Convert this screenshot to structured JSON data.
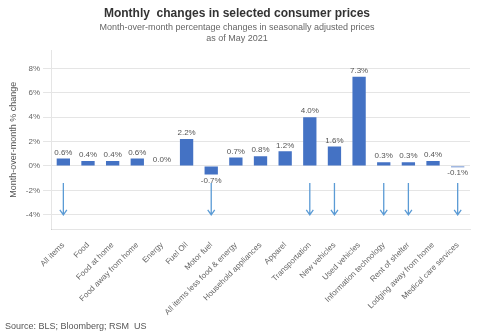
{
  "chart_data": {
    "type": "bar",
    "title": "Monthly  changes in selected consumer prices",
    "subtitle": [
      "Month-over-month percentage changes in seasonally adjusted prices",
      "as of May 2021"
    ],
    "source": "Source: BLS; Bloomberg; RSM  US",
    "ylabel": "Month-over-month % change",
    "categories": [
      "All items",
      "Food",
      "Food at home",
      "Food away from home",
      "Energy",
      "Fuel Oil",
      "Motor fuel",
      "All items less food & energy",
      "Household appliances",
      "Apparel",
      "Transportation",
      "New vehicles",
      "Used vehicles",
      "Information technology",
      "Rent of shelter",
      "Lodging away from home",
      "Medical care services"
    ],
    "values": [
      0.6,
      0.4,
      0.4,
      0.6,
      0.0,
      2.2,
      -0.7,
      0.7,
      0.8,
      1.2,
      4.0,
      1.6,
      7.3,
      0.3,
      0.3,
      0.4,
      -0.1
    ],
    "value_labels": [
      "0.6%",
      "0.4%",
      "0.4%",
      "0.6%",
      "0.0%",
      "2.2%",
      "-0.7%",
      "0.7%",
      "0.8%",
      "1.2%",
      "4.0%",
      "1.6%",
      "7.3%",
      "0.3%",
      "0.3%",
      "0.4%",
      "-0.1%"
    ],
    "data_labels": true,
    "color": "#4472C4",
    "ylim": [
      -5.2,
      9.5
    ],
    "yticks": [
      {
        "value": -4,
        "label": "-4%"
      },
      {
        "value": -2,
        "label": "-2%"
      },
      {
        "value": 0,
        "label": "0%"
      },
      {
        "value": 2,
        "label": "2%"
      },
      {
        "value": 4,
        "label": "4%"
      },
      {
        "value": 6,
        "label": "6%"
      },
      {
        "value": 8,
        "label": "8%"
      }
    ],
    "grid": true,
    "arrows": [
      {
        "category": "All items",
        "from": -1.4,
        "to": -4.0,
        "color": "#5b9bd5"
      },
      {
        "category": "Motor fuel",
        "from": -1.4,
        "to": -4.0,
        "color": "#5b9bd5"
      },
      {
        "category": "Transportation",
        "from": -1.4,
        "to": -4.0,
        "color": "#5b9bd5"
      },
      {
        "category": "New vehicles",
        "from": -1.4,
        "to": -4.0,
        "color": "#5b9bd5"
      },
      {
        "category": "Information technology",
        "from": -1.4,
        "to": -4.0,
        "color": "#5b9bd5"
      },
      {
        "category": "Rent of shelter",
        "from": -1.4,
        "to": -4.0,
        "color": "#5b9bd5"
      },
      {
        "category": "Medical care services",
        "from": -1.4,
        "to": -4.0,
        "color": "#5b9bd5"
      }
    ]
  }
}
